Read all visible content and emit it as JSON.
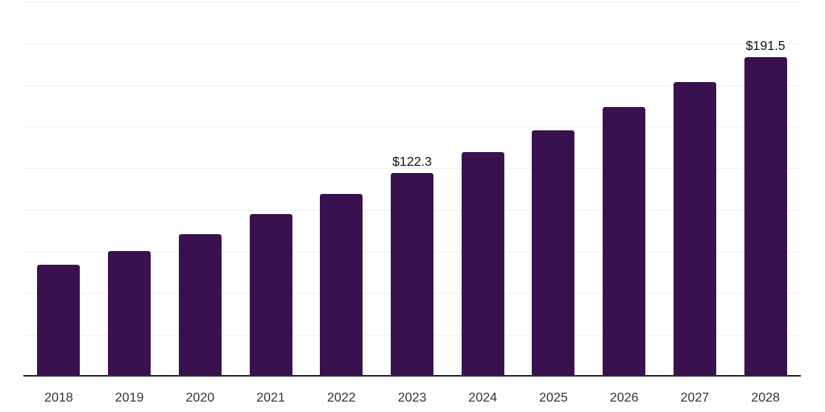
{
  "chart_data": {
    "type": "bar",
    "title": "",
    "xlabel": "",
    "ylabel": "",
    "categories": [
      "2018",
      "2019",
      "2020",
      "2021",
      "2022",
      "2023",
      "2024",
      "2025",
      "2026",
      "2027",
      "2028"
    ],
    "values": [
      67.2,
      75.3,
      85.4,
      97.5,
      109.6,
      122.3,
      134.7,
      147.8,
      161.7,
      176.6,
      191.5
    ],
    "annotations": [
      {
        "category": "2023",
        "text": "$122.3"
      },
      {
        "category": "2028",
        "text": "$191.5"
      }
    ],
    "ylim": [
      0,
      225
    ],
    "grid_step": 25,
    "grid": true,
    "legend": false,
    "colors": {
      "bar": "#38114e",
      "grid": "#f0f0f0",
      "axis_line": "#2a2a2a",
      "tick_label": "#333333",
      "value_label": "#111111",
      "background": "#ffffff"
    }
  }
}
